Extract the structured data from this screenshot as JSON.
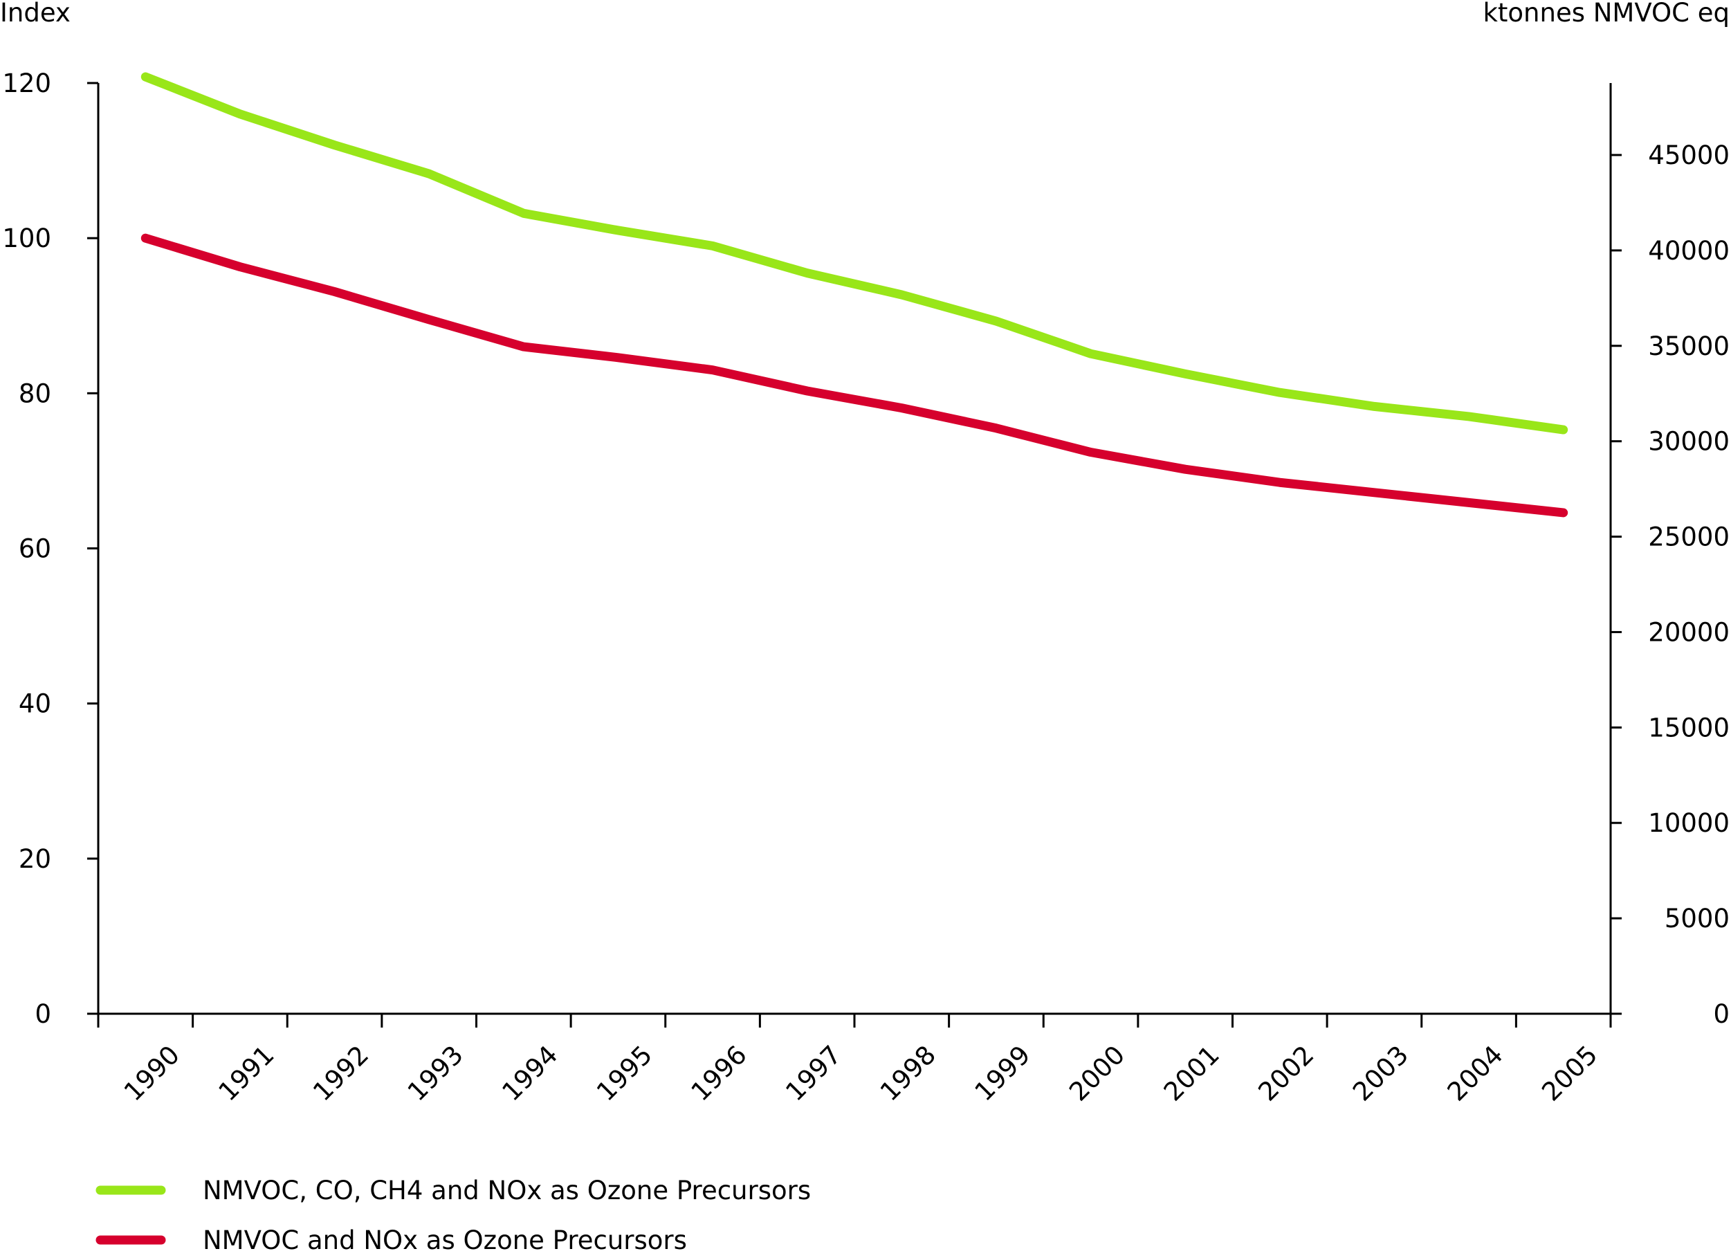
{
  "chart_data": {
    "type": "line",
    "x": [
      "1990",
      "1991",
      "1992",
      "1993",
      "1994",
      "1995",
      "1996",
      "1997",
      "1998",
      "1999",
      "2000",
      "2001",
      "2002",
      "2003",
      "2004",
      "2005"
    ],
    "y_left": {
      "label": "Index",
      "ylim": [
        0,
        120
      ],
      "ticks": [
        "0",
        "20",
        "40",
        "60",
        "80",
        "100",
        "120"
      ]
    },
    "y_right": {
      "label": "ktonnes NMVOC eq",
      "ylim": [
        0,
        49000
      ],
      "ticks": [
        "0",
        "5000",
        "10000",
        "15000",
        "20000",
        "25000",
        "30000",
        "35000",
        "40000",
        "45000"
      ]
    },
    "series": [
      {
        "name": "NMVOC, CO, CH4 and NOx as Ozone Precursors",
        "color": "#99e619",
        "values": [
          120.8,
          116.0,
          112.0,
          108.3,
          103.2,
          101.0,
          99.0,
          95.5,
          92.7,
          89.3,
          85.1,
          82.5,
          80.1,
          78.3,
          77.0,
          75.3
        ]
      },
      {
        "name": "NMVOC and NOx as Ozone Precursors",
        "color": "#d6002d",
        "values": [
          100.0,
          96.3,
          93.1,
          89.5,
          86.0,
          84.6,
          83.0,
          80.3,
          78.1,
          75.5,
          72.4,
          70.2,
          68.5,
          67.2,
          65.9,
          64.6
        ]
      }
    ],
    "grid": false,
    "legend_position": "bottom-left"
  }
}
